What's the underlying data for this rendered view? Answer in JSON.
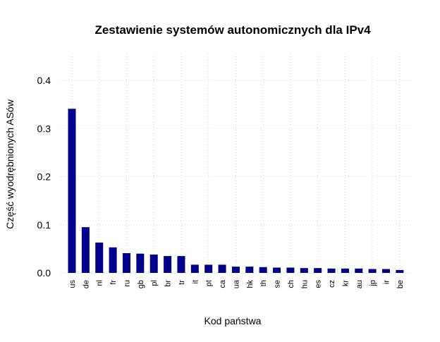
{
  "chart_data": {
    "type": "bar",
    "title": "Zestawienie systemów autonomicznych dla IPv4",
    "xlabel": "Kod państwa",
    "ylabel": "Część wyodrębnionych ASów",
    "ylim": [
      0,
      0.4
    ],
    "yticks": [
      "0.0",
      "0.1",
      "0.2",
      "0.3",
      "0.4"
    ],
    "grid": true,
    "bar_color": "#00008B",
    "grid_color": "#D3D3D3",
    "categories": [
      "us",
      "de",
      "nl",
      "fr",
      "ru",
      "gb",
      "pl",
      "br",
      "tr",
      "it",
      "pt",
      "ca",
      "ua",
      "hk",
      "th",
      "se",
      "ch",
      "hu",
      "es",
      "cz",
      "kr",
      "au",
      "jp",
      "ir",
      "be"
    ],
    "values": [
      0.341,
      0.095,
      0.063,
      0.053,
      0.041,
      0.04,
      0.038,
      0.035,
      0.035,
      0.017,
      0.017,
      0.017,
      0.013,
      0.013,
      0.012,
      0.011,
      0.011,
      0.01,
      0.01,
      0.009,
      0.009,
      0.009,
      0.008,
      0.008,
      0.006
    ]
  }
}
